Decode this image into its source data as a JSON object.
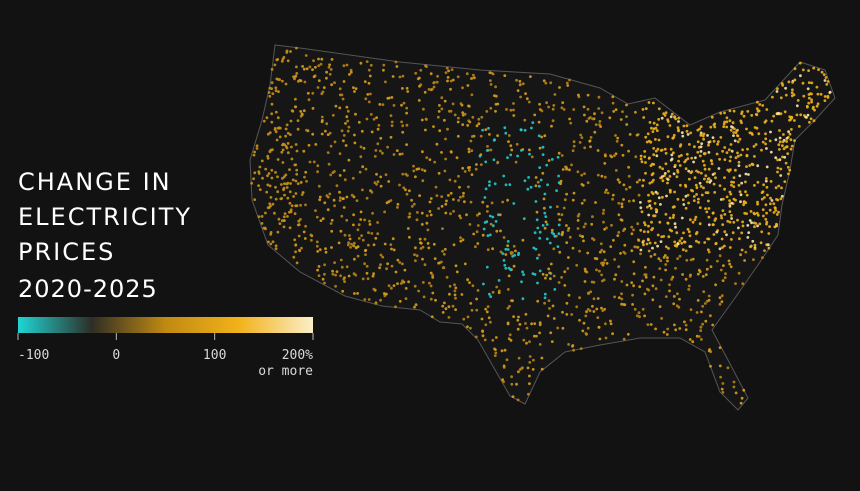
{
  "title": [
    "CHANGE IN",
    "ELECTRICITY",
    "PRICES"
  ],
  "period": "2020-2025",
  "legend": {
    "range": [
      -100,
      200
    ],
    "ticks": [
      -100,
      0,
      100,
      {
        "value": 200,
        "label": "200%"
      }
    ],
    "note": "or more",
    "colors": [
      "#1fd6d6",
      "#2e2e26",
      "#c08a12",
      "#f2b21a",
      "#fbefc8"
    ]
  }
}
